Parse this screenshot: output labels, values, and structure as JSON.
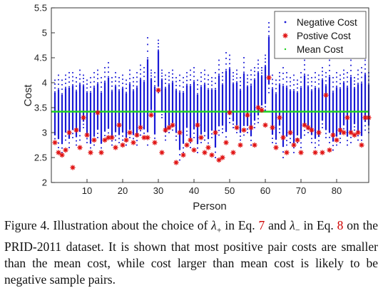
{
  "chart_data": {
    "type": "scatter",
    "title": "",
    "xlabel": "Person",
    "ylabel": "Cost",
    "xlim": [
      0,
      89
    ],
    "ylim": [
      2,
      5.5
    ],
    "xticks": [
      10,
      20,
      30,
      40,
      50,
      60,
      70,
      80
    ],
    "yticks": [
      2,
      2.5,
      3,
      3.5,
      4,
      4.5,
      5,
      5.5
    ],
    "ytick_labels": [
      "2",
      "2.5",
      "3",
      "3.5",
      "4",
      "4.5",
      "5",
      "5.5"
    ],
    "grid": false,
    "legend_position": "top-right",
    "series": [
      {
        "name": "Negative Cost",
        "marker": "point",
        "color": "#1a1ad6",
        "per_person_range": [
          [
            2.8,
            4.05
          ],
          [
            2.7,
            4.15
          ],
          [
            2.6,
            4.05
          ],
          [
            2.85,
            4.15
          ],
          [
            2.7,
            4.2
          ],
          [
            2.9,
            4.2
          ],
          [
            2.75,
            4.1
          ],
          [
            2.85,
            4.25
          ],
          [
            3.1,
            4.15
          ],
          [
            2.8,
            4.05
          ],
          [
            2.6,
            4.1
          ],
          [
            2.75,
            4.2
          ],
          [
            2.9,
            4.25
          ],
          [
            2.6,
            4.1
          ],
          [
            2.85,
            4.3
          ],
          [
            2.9,
            4.4
          ],
          [
            2.75,
            4.1
          ],
          [
            2.85,
            4.2
          ],
          [
            2.8,
            4.1
          ],
          [
            2.85,
            4.15
          ],
          [
            2.75,
            4.05
          ],
          [
            2.9,
            4.25
          ],
          [
            2.8,
            4.1
          ],
          [
            2.75,
            4.2
          ],
          [
            2.95,
            4.35
          ],
          [
            2.9,
            4.3
          ],
          [
            2.75,
            4.9
          ],
          [
            3.35,
            4.25
          ],
          [
            2.8,
            4.2
          ],
          [
            3.8,
            4.85
          ],
          [
            3.3,
            4.25
          ],
          [
            2.85,
            4.15
          ],
          [
            3.0,
            4.2
          ],
          [
            3.05,
            4.25
          ],
          [
            2.85,
            4.1
          ],
          [
            2.45,
            4.15
          ],
          [
            2.6,
            4.1
          ],
          [
            2.95,
            4.2
          ],
          [
            2.7,
            4.25
          ],
          [
            2.9,
            4.3
          ],
          [
            2.6,
            4.05
          ],
          [
            2.8,
            4.2
          ],
          [
            2.85,
            4.25
          ],
          [
            2.7,
            4.15
          ],
          [
            2.9,
            4.1
          ],
          [
            2.5,
            4.2
          ],
          [
            2.95,
            4.45
          ],
          [
            3.0,
            4.2
          ],
          [
            2.8,
            4.6
          ],
          [
            3.2,
            4.55
          ],
          [
            3.1,
            4.2
          ],
          [
            3.0,
            4.25
          ],
          [
            2.85,
            4.1
          ],
          [
            2.95,
            4.5
          ],
          [
            3.0,
            4.15
          ],
          [
            2.75,
            4.25
          ],
          [
            3.1,
            4.3
          ],
          [
            3.2,
            4.45
          ],
          [
            3.45,
            4.3
          ],
          [
            3.45,
            4.55
          ],
          [
            3.8,
            5.2
          ],
          [
            2.8,
            4.15
          ],
          [
            2.7,
            4.05
          ],
          [
            3.0,
            4.2
          ],
          [
            2.5,
            4.3
          ],
          [
            2.75,
            4.2
          ],
          [
            2.8,
            4.1
          ],
          [
            2.6,
            4.15
          ],
          [
            2.8,
            4.05
          ],
          [
            2.7,
            4.2
          ],
          [
            2.95,
            4.45
          ],
          [
            3.0,
            4.15
          ],
          [
            2.8,
            4.1
          ],
          [
            2.7,
            4.2
          ],
          [
            2.75,
            4.15
          ],
          [
            3.1,
            4.3
          ],
          [
            2.9,
            4.2
          ],
          [
            2.8,
            4.45
          ],
          [
            2.65,
            4.1
          ],
          [
            2.75,
            4.2
          ],
          [
            2.8,
            4.15
          ],
          [
            3.0,
            4.25
          ],
          [
            2.75,
            4.2
          ],
          [
            2.8,
            4.45
          ],
          [
            3.05,
            4.1
          ],
          [
            2.85,
            4.25
          ],
          [
            2.75,
            4.3
          ],
          [
            3.05,
            4.45
          ],
          [
            3.0,
            4.2
          ]
        ]
      },
      {
        "name": "Postive Cost",
        "marker": "asterisk",
        "color": "#e01010",
        "x": [
          1,
          2,
          3,
          4,
          5,
          6,
          7,
          8,
          9,
          10,
          11,
          12,
          13,
          14,
          15,
          16,
          17,
          18,
          19,
          20,
          21,
          22,
          23,
          24,
          25,
          26,
          27,
          28,
          29,
          30,
          31,
          32,
          33,
          34,
          35,
          36,
          37,
          38,
          39,
          40,
          41,
          42,
          43,
          44,
          45,
          46,
          47,
          48,
          49,
          50,
          51,
          52,
          53,
          54,
          55,
          56,
          57,
          58,
          59,
          60,
          61,
          62,
          63,
          64,
          65,
          66,
          67,
          68,
          69,
          70,
          71,
          72,
          73,
          74,
          75,
          76,
          77,
          78,
          79,
          80,
          81,
          82,
          83,
          84,
          85,
          86,
          87,
          88,
          89
        ],
        "y": [
          2.8,
          2.6,
          2.55,
          2.65,
          3.0,
          2.3,
          3.05,
          2.7,
          3.3,
          2.95,
          2.6,
          2.85,
          3.4,
          2.6,
          2.85,
          2.9,
          2.9,
          2.7,
          3.15,
          2.75,
          2.85,
          3.0,
          2.8,
          2.95,
          3.1,
          2.9,
          2.9,
          3.35,
          2.8,
          3.85,
          2.6,
          3.05,
          3.1,
          3.15,
          2.4,
          3.0,
          2.55,
          2.75,
          2.85,
          2.65,
          3.15,
          2.9,
          2.6,
          2.7,
          2.55,
          3.0,
          2.45,
          2.5,
          2.8,
          3.4,
          2.6,
          3.1,
          2.75,
          3.05,
          3.35,
          3.1,
          2.75,
          3.5,
          3.45,
          3.15,
          4.1,
          3.1,
          2.7,
          3.3,
          2.9,
          2.6,
          3.0,
          2.75,
          2.85,
          2.6,
          3.15,
          3.1,
          3.05,
          2.6,
          3.0,
          2.6,
          3.75,
          2.65,
          2.95,
          2.85,
          3.05,
          3.0,
          3.3,
          3.0,
          2.95,
          3.0,
          2.75,
          3.3,
          3.3
        ]
      },
      {
        "name": "Mean Cost",
        "marker": "line",
        "color": "#1fd21f",
        "value": 3.42
      }
    ]
  },
  "caption": {
    "figure_label": "Figure 4.",
    "text_1": "Illustration about the choice of",
    "lambda_plus_symbol": "λ",
    "lambda_plus_sub": "+",
    "text_2": "in Eq.",
    "eq_ref_1": "7",
    "text_3": "and",
    "lambda_minus_symbol": "λ",
    "lambda_minus_sub": "−",
    "text_4": "in Eq.",
    "eq_ref_2": "8",
    "text_5": "on the PRID-2011 dataset. It is shown that most positive pair costs are smaller than the mean cost, while cost larger than mean cost is likely to be negative sample pairs."
  }
}
